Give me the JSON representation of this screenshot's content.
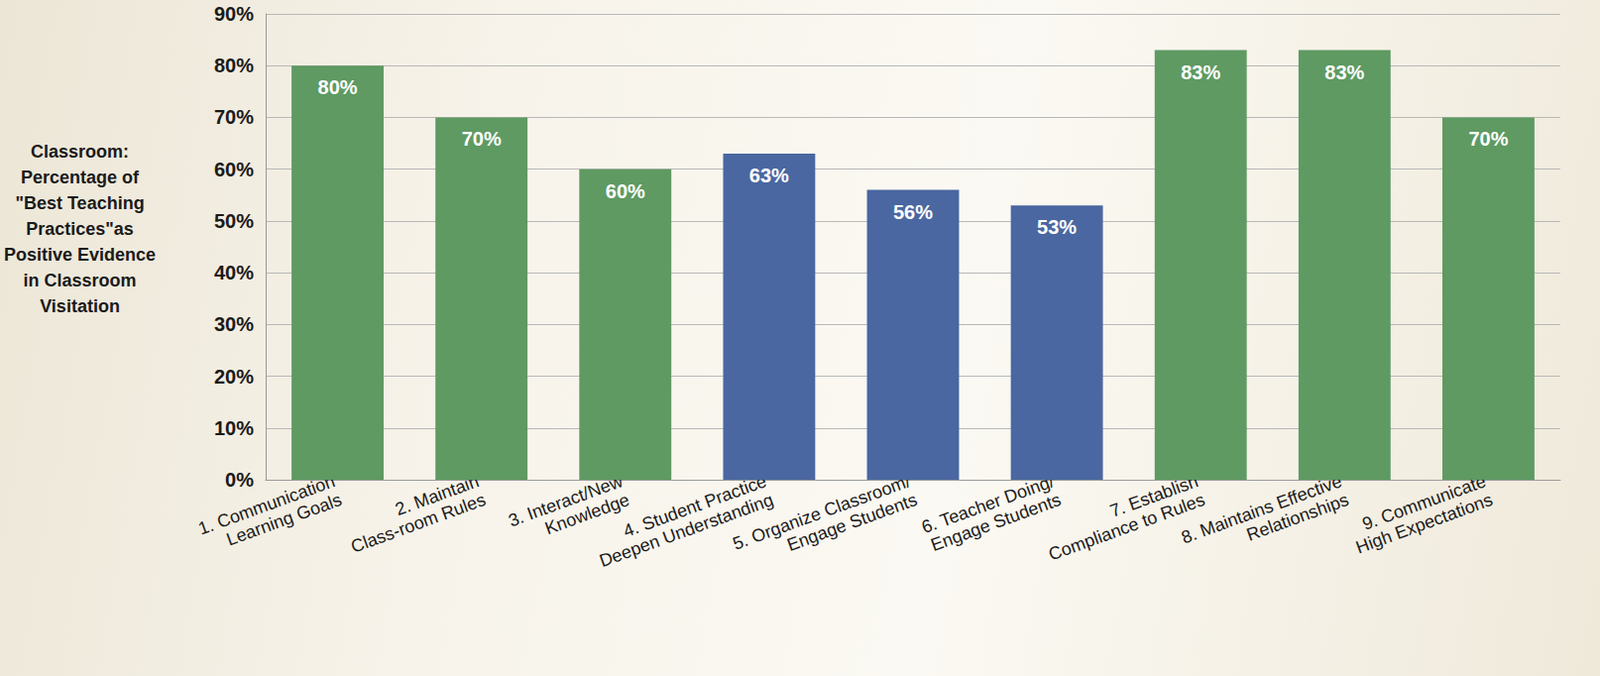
{
  "chart_data": {
    "type": "bar",
    "ylabel": "Classroom: Percentage of \"Best Teaching Practices\"as Positive Evidence in Classroom Visitation",
    "categories": [
      "1. Communication Learning Goals",
      "2. Maintain Class-room Rules",
      "3. Interact/New Knowledge",
      "4. Student Practice Deepen Understanding",
      "5. Organize Classroom/ Engage Students",
      "6. Teacher Doing/ Engage Students",
      "7. Establish Compliance to Rules",
      "8. Maintains Effective Relationships",
      "9. Communicate High Expectations"
    ],
    "values": [
      80,
      70,
      60,
      63,
      56,
      53,
      83,
      83,
      70
    ],
    "value_labels": [
      "80%",
      "70%",
      "60%",
      "63%",
      "56%",
      "53%",
      "83%",
      "83%",
      "70%"
    ],
    "colors": [
      "#5e9a62",
      "#5e9a62",
      "#5e9a62",
      "#4a67a1",
      "#4a67a1",
      "#4a67a1",
      "#5e9a62",
      "#5e9a62",
      "#5e9a62"
    ],
    "ylim": [
      0,
      90
    ],
    "yticks": [
      {
        "value": 0,
        "label": "0%"
      },
      {
        "value": 10,
        "label": "10%"
      },
      {
        "value": 20,
        "label": "20%"
      },
      {
        "value": 30,
        "label": "30%"
      },
      {
        "value": 40,
        "label": "40%"
      },
      {
        "value": 50,
        "label": "50%"
      },
      {
        "value": 60,
        "label": "60%"
      },
      {
        "value": 70,
        "label": "70%"
      },
      {
        "value": 80,
        "label": "80%"
      },
      {
        "value": 90,
        "label": "90%"
      }
    ],
    "grid": true,
    "data_labels": true
  }
}
